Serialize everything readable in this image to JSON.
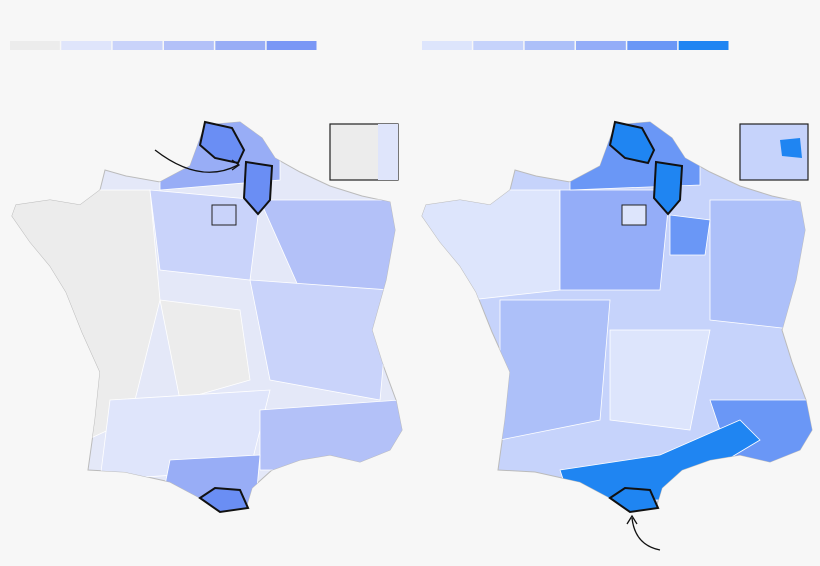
{
  "legends": [
    {
      "colors": [
        "#ececec",
        "#dfe5fb",
        "#c9d3fa",
        "#b3c1f8",
        "#98adf6",
        "#7a97f5"
      ]
    },
    {
      "colors": [
        "#dde5fc",
        "#c6d3fb",
        "#adc0f9",
        "#94adf8",
        "#6a97f6",
        "#1f85f2"
      ]
    }
  ]
}
